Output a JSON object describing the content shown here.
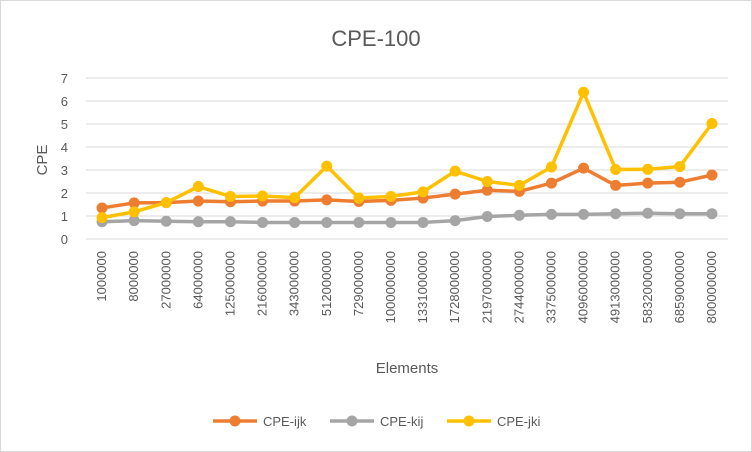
{
  "chart_data": {
    "type": "line",
    "title": "CPE-100",
    "xlabel": "Elements",
    "ylabel": "CPE",
    "ylim": [
      0,
      7
    ],
    "yticks": [
      "0",
      "1",
      "2",
      "3",
      "4",
      "5",
      "6",
      "7"
    ],
    "grid": true,
    "legend": "bottom",
    "categories": [
      "1000000",
      "8000000",
      "27000000",
      "64000000",
      "125000000",
      "216000000",
      "343000000",
      "512000000",
      "729000000",
      "1000000000",
      "1331000000",
      "1728000000",
      "2197000000",
      "2744000000",
      "3375000000",
      "4096000000",
      "4913000000",
      "5832000000",
      "6859000000",
      "8000000000"
    ],
    "series": [
      {
        "name": "CPE-ijk",
        "color": "#ed7d31",
        "values": [
          1.35,
          1.57,
          1.58,
          1.65,
          1.62,
          1.65,
          1.65,
          1.7,
          1.63,
          1.68,
          1.78,
          1.95,
          2.12,
          2.07,
          2.43,
          3.08,
          2.33,
          2.43,
          2.47,
          2.78
        ]
      },
      {
        "name": "CPE-kij",
        "color": "#a5a5a5",
        "values": [
          0.75,
          0.8,
          0.77,
          0.75,
          0.75,
          0.72,
          0.72,
          0.72,
          0.72,
          0.72,
          0.72,
          0.8,
          0.98,
          1.03,
          1.07,
          1.07,
          1.1,
          1.12,
          1.1,
          1.1
        ]
      },
      {
        "name": "CPE-jki",
        "color": "#ffc000",
        "values": [
          0.93,
          1.18,
          1.58,
          2.28,
          1.85,
          1.87,
          1.8,
          3.17,
          1.78,
          1.85,
          2.05,
          2.95,
          2.5,
          2.33,
          3.13,
          6.38,
          3.02,
          3.03,
          3.15,
          5.02
        ]
      }
    ]
  }
}
